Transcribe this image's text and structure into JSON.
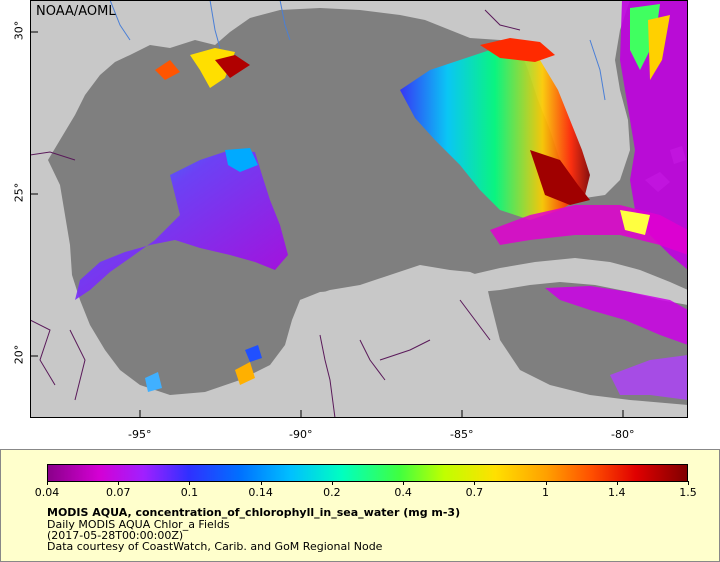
{
  "credit": "NOAA/AOML",
  "map": {
    "lon_ticks": [
      "-95°",
      "-90°",
      "-85°",
      "-80°"
    ],
    "lat_ticks": [
      "30°",
      "25°",
      "20°"
    ]
  },
  "legend": {
    "colorbar_ticks": [
      "0.04",
      "0.07",
      "0.1",
      "0.14",
      "0.2",
      "0.4",
      "0.7",
      "1",
      "1.4",
      "1.5"
    ],
    "variable": "MODIS AQUA, concentration_of_chlorophyll_in_sea_water (mg m-3)",
    "dataset": "Daily MODIS AQUA Chlor_a Fields",
    "time": "(2017-05-28T00:00:00Z)",
    "courtesy": "Data courtesy of CoastWatch, Carib. and GoM Regional Node"
  },
  "colors": {
    "land": "#c8c8c8",
    "ocean_nodata": "#7f7f7f",
    "legend_bg": "#ffffcc"
  }
}
